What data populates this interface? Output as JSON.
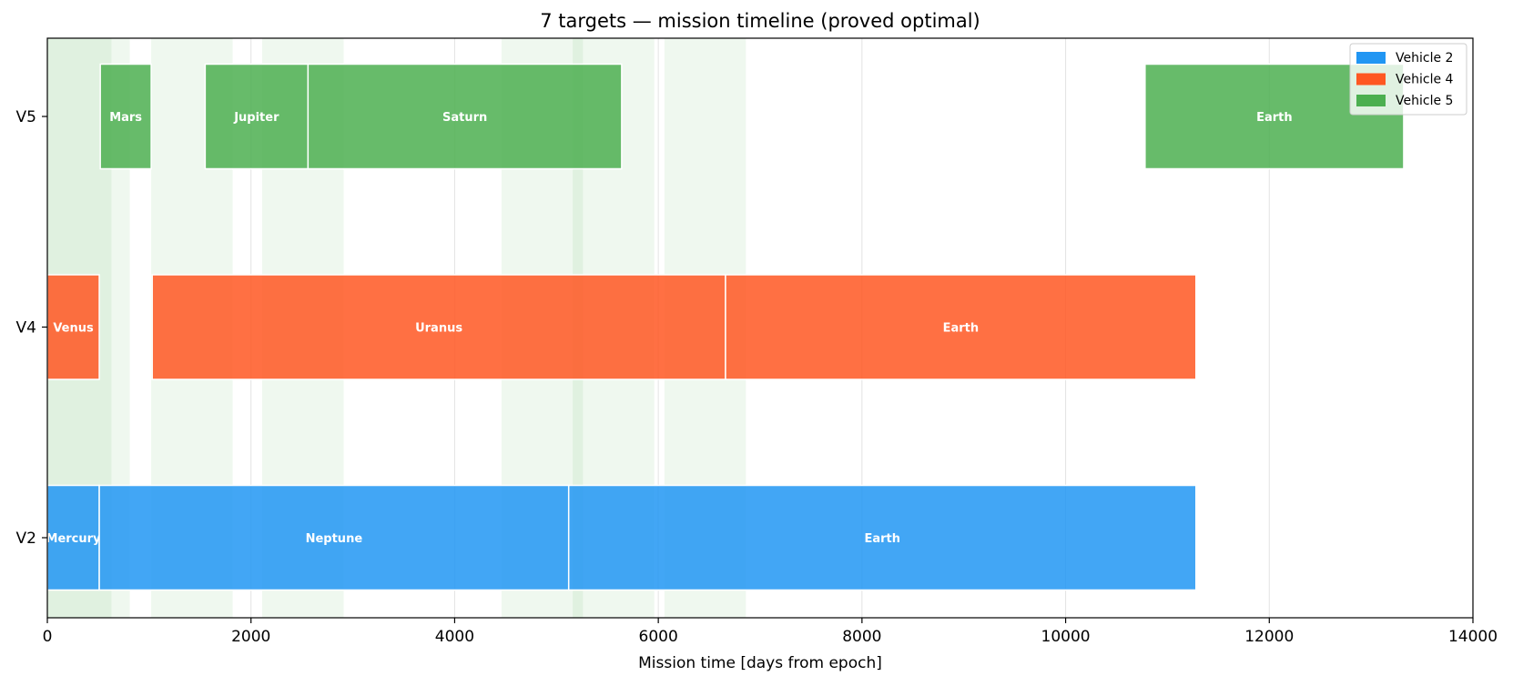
{
  "chart_data": {
    "type": "gantt",
    "title": "7 targets — mission timeline (proved optimal)",
    "xlabel": "Mission time [days from epoch]",
    "ylabel": "",
    "xlim": [
      0,
      14000
    ],
    "x_ticks": [
      0,
      2000,
      4000,
      6000,
      8000,
      10000,
      12000,
      14000
    ],
    "x_tick_labels": [
      "0",
      "2000",
      "4000",
      "6000",
      "8000",
      "10000",
      "12000",
      "14000"
    ],
    "grid": "vertical",
    "legend_position": "top-right",
    "rows": [
      "V2",
      "V4",
      "V5"
    ],
    "series": [
      {
        "name": "Vehicle 2",
        "row": "V2",
        "color": "#2196F3",
        "segments": [
          {
            "target": "Mercury",
            "start": 0,
            "end": 510
          },
          {
            "target": "Neptune",
            "start": 510,
            "end": 5120
          },
          {
            "target": "Earth",
            "start": 5120,
            "end": 11280
          }
        ]
      },
      {
        "name": "Vehicle 4",
        "row": "V4",
        "color": "#FF5722",
        "segments": [
          {
            "target": "Venus",
            "start": 0,
            "end": 510
          },
          {
            "target": "Uranus",
            "start": 1030,
            "end": 6660
          },
          {
            "target": "Earth",
            "start": 6660,
            "end": 11280
          }
        ]
      },
      {
        "name": "Vehicle 5",
        "row": "V5",
        "color": "#4CAF50",
        "segments": [
          {
            "target": "Mars",
            "start": 520,
            "end": 1020
          },
          {
            "target": "Jupiter",
            "start": 1550,
            "end": 2560
          },
          {
            "target": "Saturn",
            "start": 2560,
            "end": 5640
          },
          {
            "target": "Earth",
            "start": 10780,
            "end": 13320
          }
        ]
      }
    ],
    "shaded_windows": [
      [
        0,
        630
      ],
      [
        0,
        810
      ],
      [
        1020,
        1820
      ],
      [
        2110,
        2910
      ],
      [
        4460,
        5260
      ],
      [
        5160,
        5960
      ],
      [
        6060,
        6860
      ]
    ],
    "shade_color": "#4CAF50"
  }
}
